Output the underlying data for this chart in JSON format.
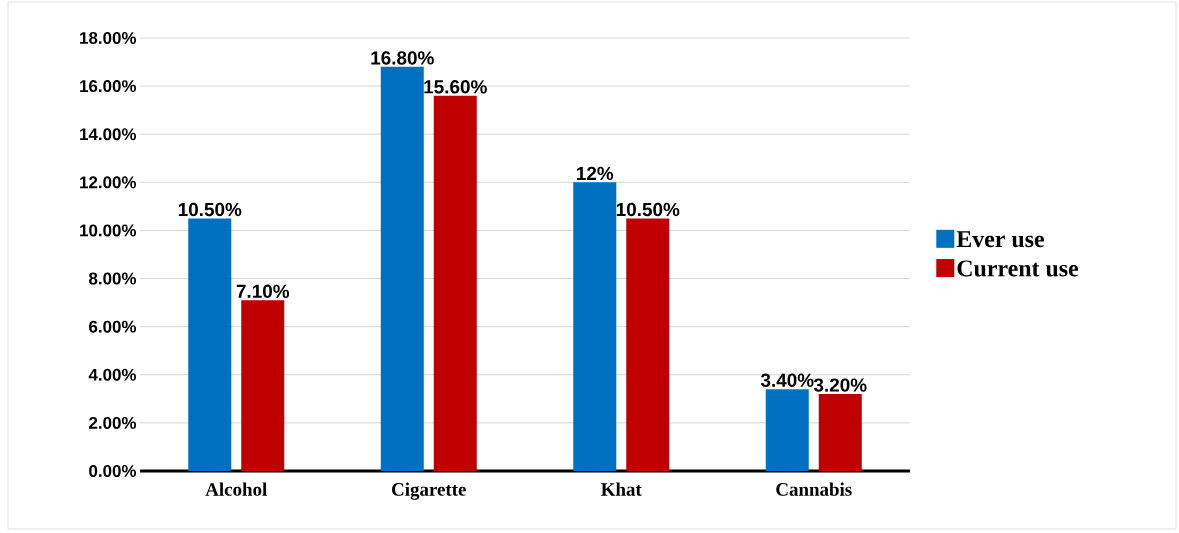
{
  "chart_data": {
    "type": "bar",
    "categories": [
      "Alcohol",
      "Cigarette",
      "Khat",
      "Cannabis"
    ],
    "series": [
      {
        "name": "Ever use",
        "color": "#0070c0",
        "values": [
          10.5,
          16.8,
          12,
          3.4
        ],
        "value_labels": [
          "10.50%",
          "16.80%",
          "12%",
          "3.40%"
        ]
      },
      {
        "name": "Current use",
        "color": "#c00000",
        "values": [
          7.1,
          15.6,
          10.5,
          3.2
        ],
        "value_labels": [
          "7.10%",
          "15.60%",
          "10.50%",
          "3.20%"
        ]
      }
    ],
    "ylim": [
      0,
      18
    ],
    "yticks": [
      {
        "value": 0,
        "label": "0.00%"
      },
      {
        "value": 2,
        "label": "2.00%"
      },
      {
        "value": 4,
        "label": "4.00%"
      },
      {
        "value": 6,
        "label": "6.00%"
      },
      {
        "value": 8,
        "label": "8.00%"
      },
      {
        "value": 10,
        "label": "10.00%"
      },
      {
        "value": 12,
        "label": "12.00%"
      },
      {
        "value": 14,
        "label": "14.00%"
      },
      {
        "value": 16,
        "label": "16.00%"
      },
      {
        "value": 18,
        "label": "18.00%"
      }
    ],
    "grid": "y",
    "legend": "right"
  }
}
